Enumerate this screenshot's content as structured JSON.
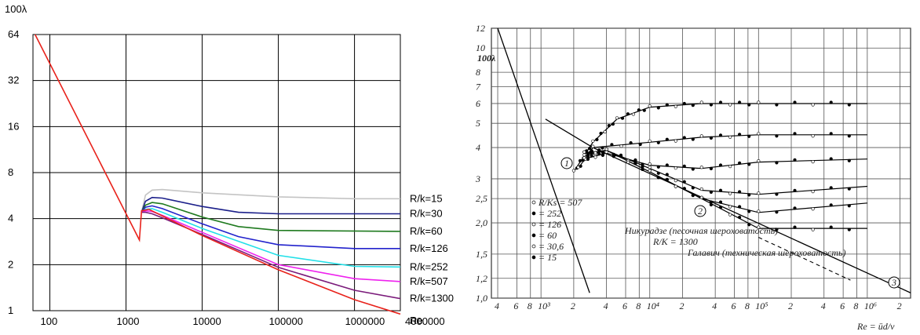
{
  "chart_data": [
    {
      "type": "line",
      "title": "",
      "ylabel": "100λ",
      "xlabel": "Re",
      "x_scale": "log",
      "y_scale": "log2",
      "xlim": [
        60,
        4000000
      ],
      "ylim": [
        1,
        64
      ],
      "x_ticks": [
        "100",
        "1000",
        "10000",
        "100000",
        "1000000",
        "4000000"
      ],
      "y_ticks": [
        "1",
        "2",
        "4",
        "8",
        "16",
        "32",
        "64"
      ],
      "grid": true,
      "legend": "right-inline",
      "reference_line": {
        "color": "#e8221b",
        "points": [
          [
            64,
            64
          ],
          [
            1500,
            2.9
          ],
          [
            1600,
            4.5
          ],
          [
            2000,
            4.6
          ],
          [
            10000,
            3.1
          ],
          [
            100000,
            1.85
          ],
          [
            1000000,
            1.18
          ],
          [
            4000000,
            0.95
          ]
        ]
      },
      "series": [
        {
          "name": "R/k=15",
          "color": "#c4c4c4",
          "points": [
            [
              1600,
              4.4
            ],
            [
              1800,
              5.7
            ],
            [
              2200,
              6.15
            ],
            [
              3000,
              6.2
            ],
            [
              10000,
              5.9
            ],
            [
              100000,
              5.55
            ],
            [
              1000000,
              5.4
            ],
            [
              4000000,
              5.4
            ]
          ]
        },
        {
          "name": "R/k=30",
          "color": "#1b1f8a",
          "points": [
            [
              1600,
              4.4
            ],
            [
              1800,
              5.2
            ],
            [
              2200,
              5.5
            ],
            [
              3000,
              5.45
            ],
            [
              10000,
              4.8
            ],
            [
              30000,
              4.4
            ],
            [
              100000,
              4.3
            ],
            [
              4000000,
              4.3
            ]
          ]
        },
        {
          "name": "R/k=60",
          "color": "#1f7a1f",
          "points": [
            [
              1600,
              4.4
            ],
            [
              1800,
              4.9
            ],
            [
              2200,
              5.1
            ],
            [
              3000,
              5.0
            ],
            [
              10000,
              4.1
            ],
            [
              30000,
              3.55
            ],
            [
              100000,
              3.35
            ],
            [
              4000000,
              3.3
            ]
          ]
        },
        {
          "name": "R/k=126",
          "color": "#2222cc",
          "points": [
            [
              1600,
              4.4
            ],
            [
              1800,
              4.75
            ],
            [
              2200,
              4.85
            ],
            [
              3000,
              4.65
            ],
            [
              10000,
              3.7
            ],
            [
              30000,
              3.05
            ],
            [
              100000,
              2.7
            ],
            [
              1000000,
              2.55
            ],
            [
              4000000,
              2.55
            ]
          ]
        },
        {
          "name": "R/k=252",
          "color": "#22e0e8",
          "points": [
            [
              1600,
              4.4
            ],
            [
              1800,
              4.6
            ],
            [
              2200,
              4.65
            ],
            [
              3000,
              4.4
            ],
            [
              10000,
              3.45
            ],
            [
              100000,
              2.3
            ],
            [
              1000000,
              1.95
            ],
            [
              4000000,
              1.93
            ]
          ]
        },
        {
          "name": "R/k=507",
          "color": "#ee22ee",
          "points": [
            [
              1600,
              4.4
            ],
            [
              1800,
              4.5
            ],
            [
              2200,
              4.45
            ],
            [
              3000,
              4.2
            ],
            [
              10000,
              3.25
            ],
            [
              100000,
              2.0
            ],
            [
              1000000,
              1.62
            ],
            [
              4000000,
              1.55
            ]
          ]
        },
        {
          "name": "R/k=1300",
          "color": "#7a1a7a",
          "points": [
            [
              1600,
              4.4
            ],
            [
              1800,
              4.4
            ],
            [
              2200,
              4.3
            ],
            [
              3000,
              4.05
            ],
            [
              10000,
              3.15
            ],
            [
              100000,
              1.92
            ],
            [
              1000000,
              1.36
            ],
            [
              4000000,
              1.2
            ]
          ]
        }
      ]
    },
    {
      "type": "scatter",
      "ylabel": "100λ",
      "xlabel": "Re = ūd/ν",
      "x_scale": "log",
      "y_scale": "log",
      "xlim": [
        350,
        2500000
      ],
      "ylim": [
        1.0,
        12
      ],
      "y_ticks": [
        "1,0",
        "1,2",
        "1,5",
        "2,0",
        "2,5",
        "3",
        "4",
        "5",
        "6",
        "7",
        "8",
        "10",
        "12"
      ],
      "x_ticks": [
        "4",
        "6",
        "8",
        "10³",
        "2",
        "4",
        "6",
        "8",
        "10⁴",
        "2",
        "4",
        "6",
        "8",
        "10⁵",
        "2",
        "4",
        "6",
        "8",
        "10⁶",
        "2",
        "4"
      ],
      "grid": true,
      "annotations": [
        "Никурадзе (песочная шероховатость)",
        "R/K = 1300",
        "Галавич (техническая шероховатость)",
        "1",
        "2",
        "3"
      ],
      "legend_entries": [
        "R/Ks = 507",
        "= 252",
        "= 126",
        "= 60",
        "= 30,6",
        "= 15"
      ],
      "series": [
        {
          "name": "= 15",
          "points": [
            [
              2000,
              3.2
            ],
            [
              3000,
              4.2
            ],
            [
              5000,
              5.2
            ],
            [
              10000,
              5.8
            ],
            [
              30000,
              6.0
            ],
            [
              100000,
              6.0
            ],
            [
              1000000,
              6.0
            ]
          ]
        },
        {
          "name": "= 30,6",
          "points": [
            [
              2200,
              3.3
            ],
            [
              3000,
              4.0
            ],
            [
              10000,
              4.2
            ],
            [
              30000,
              4.4
            ],
            [
              100000,
              4.5
            ],
            [
              1000000,
              4.5
            ]
          ]
        },
        {
          "name": "= 60",
          "points": [
            [
              2500,
              3.6
            ],
            [
              4000,
              3.8
            ],
            [
              10000,
              3.4
            ],
            [
              30000,
              3.3
            ],
            [
              100000,
              3.5
            ],
            [
              1000000,
              3.6
            ]
          ]
        },
        {
          "name": "= 126",
          "points": [
            [
              2500,
              3.7
            ],
            [
              4000,
              3.9
            ],
            [
              10000,
              3.3
            ],
            [
              30000,
              2.7
            ],
            [
              100000,
              2.6
            ],
            [
              1000000,
              2.8
            ]
          ]
        },
        {
          "name": "= 252",
          "points": [
            [
              2500,
              3.8
            ],
            [
              4000,
              3.9
            ],
            [
              10000,
              3.2
            ],
            [
              30000,
              2.5
            ],
            [
              100000,
              2.2
            ],
            [
              1000000,
              2.4
            ]
          ]
        },
        {
          "name": "= 507",
          "points": [
            [
              2500,
              3.8
            ],
            [
              4000,
              3.9
            ],
            [
              10000,
              3.2
            ],
            [
              30000,
              2.5
            ],
            [
              100000,
              1.9
            ],
            [
              1000000,
              1.9
            ]
          ]
        }
      ]
    }
  ]
}
